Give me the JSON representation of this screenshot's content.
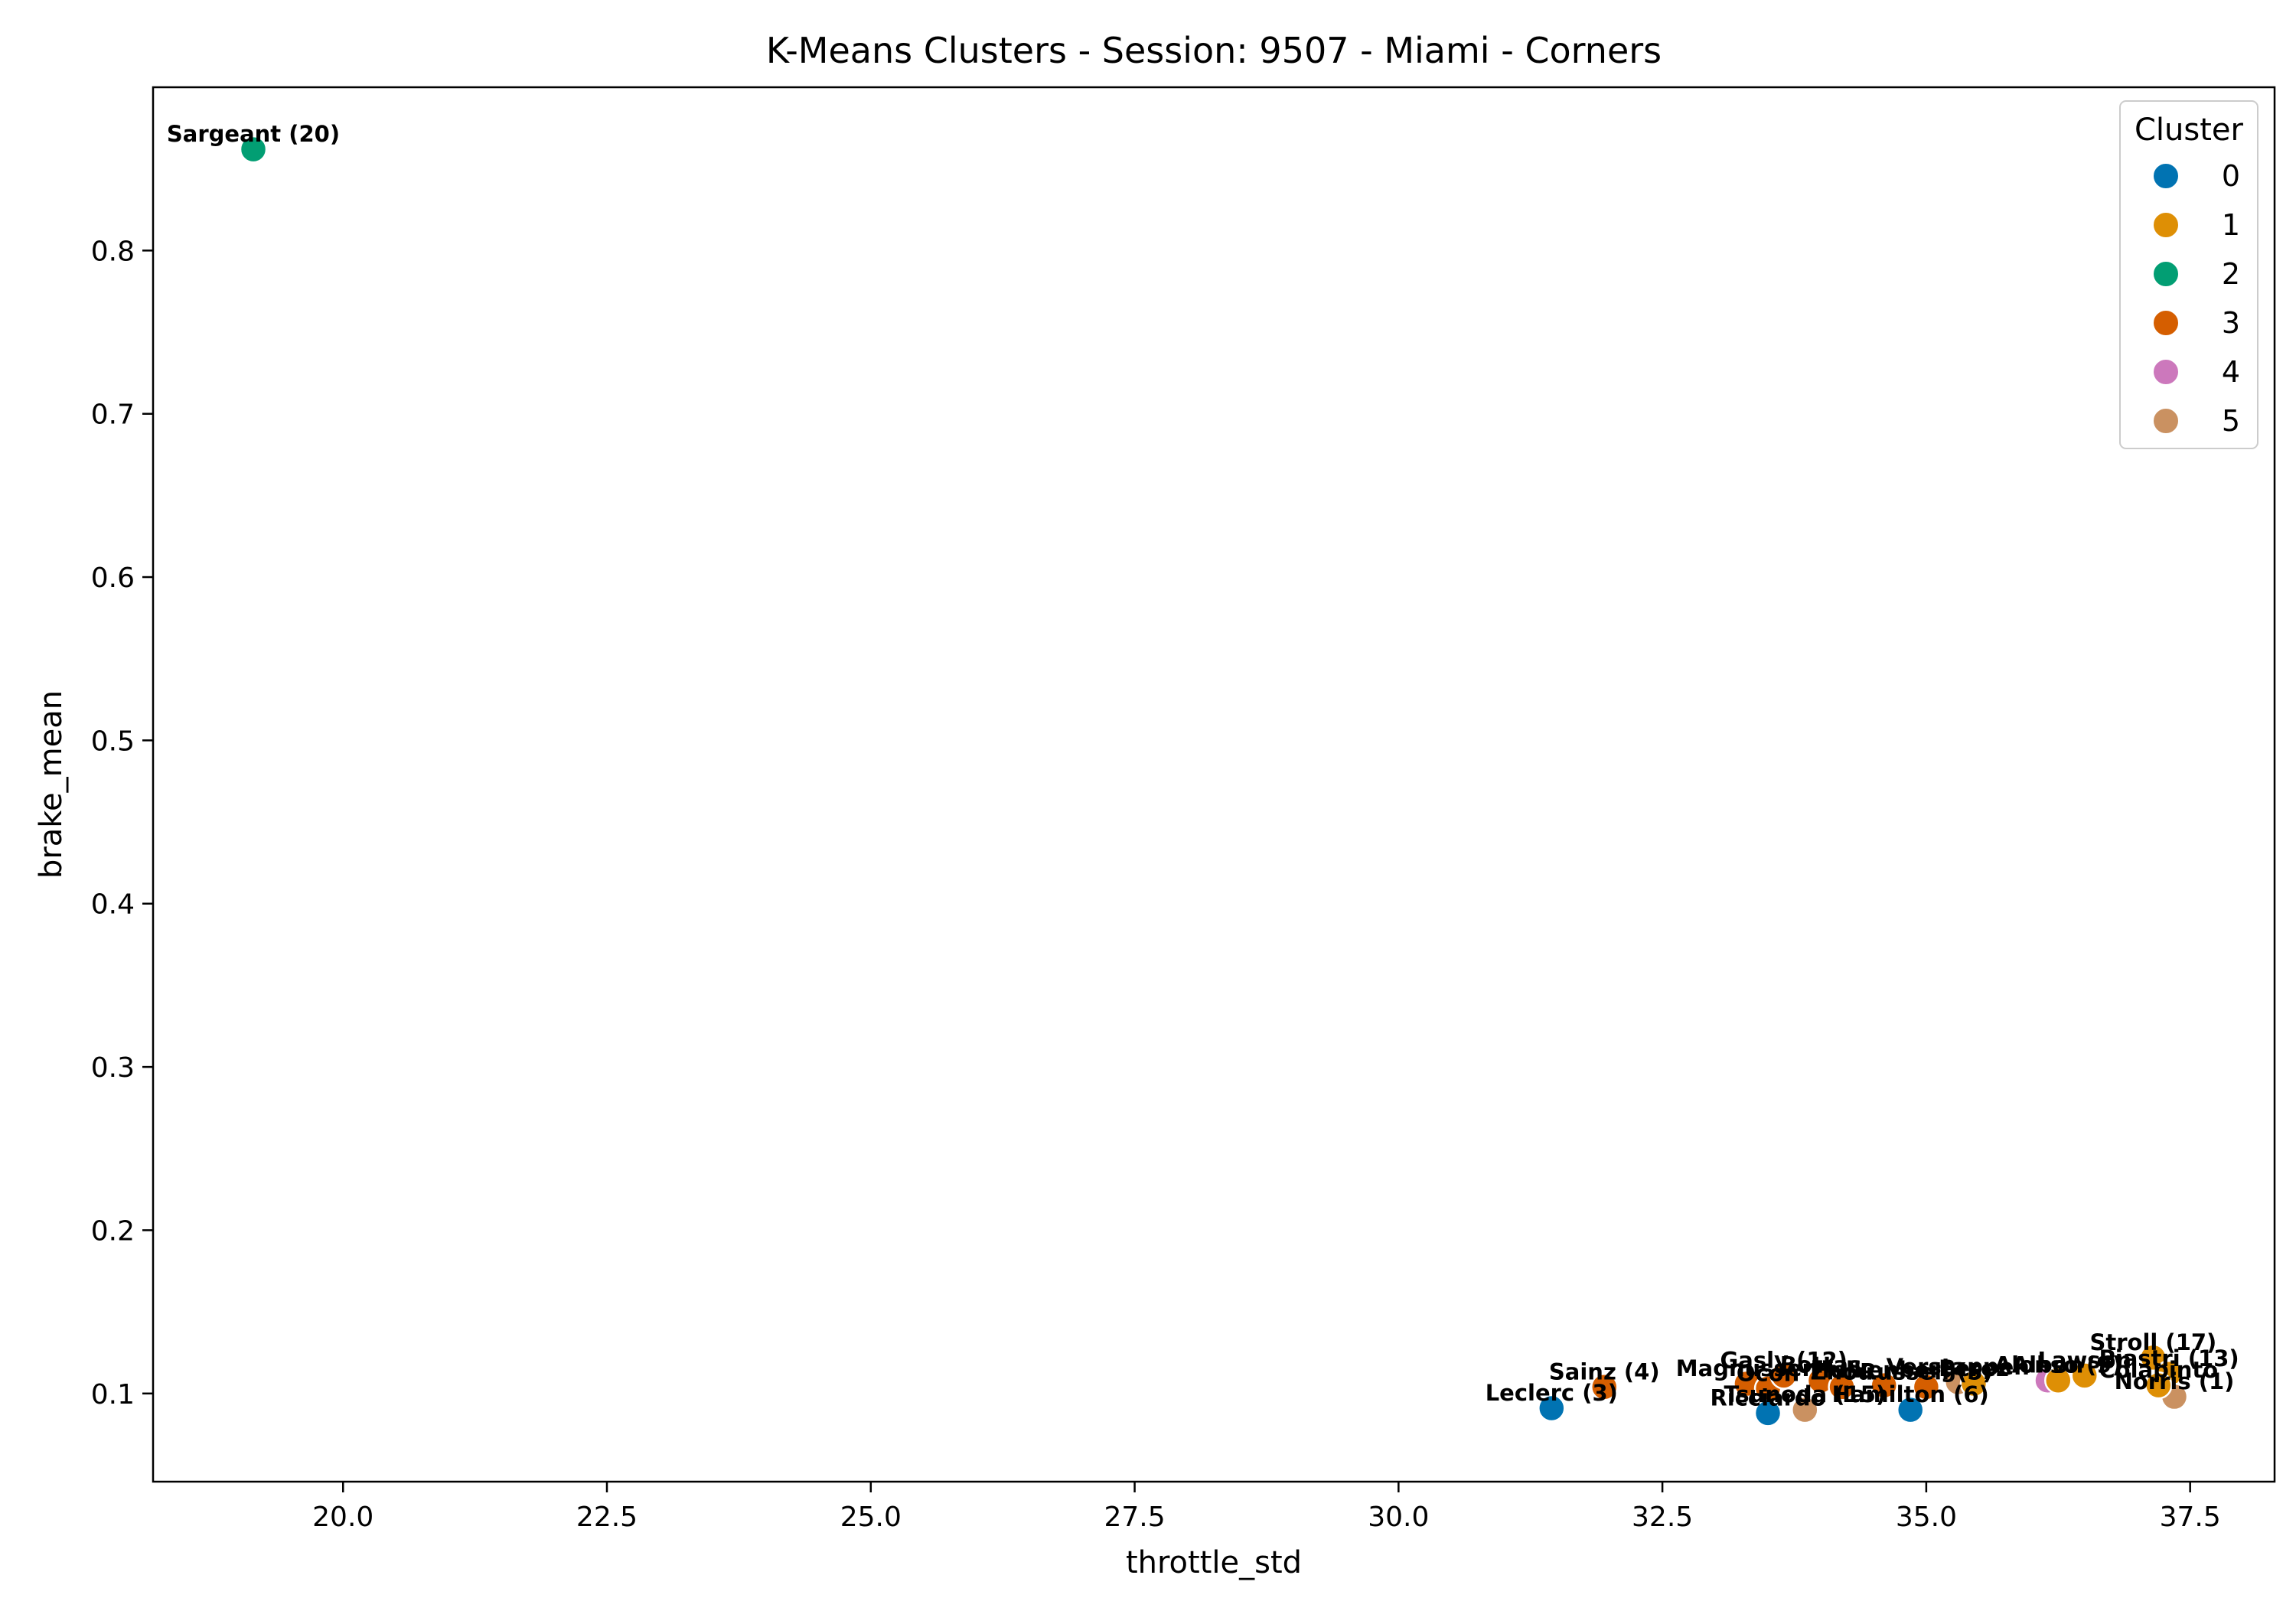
{
  "chart_data": {
    "type": "scatter",
    "title": "K-Means Clusters - Session: 9507 - Miami - Corners",
    "xlabel": "throttle_std",
    "ylabel": "brake_mean",
    "xlim": [
      18.2,
      38.3
    ],
    "ylim": [
      0.046,
      0.9
    ],
    "x_ticks": [
      "20.0",
      "22.5",
      "25.0",
      "27.5",
      "30.0",
      "32.5",
      "35.0",
      "37.5"
    ],
    "x_tick_values": [
      20.0,
      22.5,
      25.0,
      27.5,
      30.0,
      32.5,
      35.0,
      37.5
    ],
    "y_ticks": [
      "0.1",
      "0.2",
      "0.3",
      "0.4",
      "0.5",
      "0.6",
      "0.7",
      "0.8"
    ],
    "y_tick_values": [
      0.1,
      0.2,
      0.3,
      0.4,
      0.5,
      0.6,
      0.7,
      0.8
    ],
    "grid": false,
    "legend": {
      "title": "Cluster",
      "placement": "upper-right",
      "entries": [
        {
          "label": "0",
          "color": "#0173b2"
        },
        {
          "label": "1",
          "color": "#de8f05"
        },
        {
          "label": "2",
          "color": "#029e73"
        },
        {
          "label": "3",
          "color": "#d55e00"
        },
        {
          "label": "4",
          "color": "#cc78bc"
        },
        {
          "label": "5",
          "color": "#ca9161"
        }
      ]
    },
    "points": [
      {
        "label": "Sargeant (20)",
        "x": 19.15,
        "y": 0.862,
        "cluster": 2
      },
      {
        "label": "Leclerc (3)",
        "x": 31.45,
        "y": 0.091,
        "cluster": 0
      },
      {
        "label": "Sainz (4)",
        "x": 31.95,
        "y": 0.104,
        "cluster": 3
      },
      {
        "label": "Magnussen",
        "x": 33.3,
        "y": 0.106,
        "cluster": 3
      },
      {
        "label": "Ocon",
        "x": 33.5,
        "y": 0.103,
        "cluster": 3
      },
      {
        "label": "Gasly (12)",
        "x": 33.65,
        "y": 0.111,
        "cluster": 3
      },
      {
        "label": "Ricciardo",
        "x": 33.5,
        "y": 0.088,
        "cluster": 0
      },
      {
        "label": "Tsunoda (15)",
        "x": 33.85,
        "y": 0.09,
        "cluster": 5
      },
      {
        "label": "Bottas",
        "x": 34.0,
        "y": 0.108,
        "cluster": 3
      },
      {
        "label": "Zhou",
        "x": 34.2,
        "y": 0.104,
        "cluster": 3
      },
      {
        "label": "Hulkenberg",
        "x": 34.6,
        "y": 0.105,
        "cluster": 3
      },
      {
        "label": "Hamilton (6)",
        "x": 34.85,
        "y": 0.09,
        "cluster": 0
      },
      {
        "label": "Russell (5)",
        "x": 35.0,
        "y": 0.104,
        "cluster": 3
      },
      {
        "label": "Verstappen",
        "x": 35.3,
        "y": 0.107,
        "cluster": 5
      },
      {
        "label": "Perez",
        "x": 35.45,
        "y": 0.106,
        "cluster": 1
      },
      {
        "label": "Albon",
        "x": 36.15,
        "y": 0.108,
        "cluster": 4
      },
      {
        "label": "Alonso (9)",
        "x": 36.25,
        "y": 0.108,
        "cluster": 1
      },
      {
        "label": "Stroll (17)",
        "x": 37.15,
        "y": 0.122,
        "cluster": 1
      },
      {
        "label": "Piastri (13)",
        "x": 37.3,
        "y": 0.112,
        "cluster": 1
      },
      {
        "label": "Lawson",
        "x": 36.5,
        "y": 0.111,
        "cluster": 1
      },
      {
        "label": "Norris (1)",
        "x": 37.35,
        "y": 0.098,
        "cluster": 5
      },
      {
        "label": "Colapinto",
        "x": 37.2,
        "y": 0.105,
        "cluster": 1
      }
    ]
  }
}
